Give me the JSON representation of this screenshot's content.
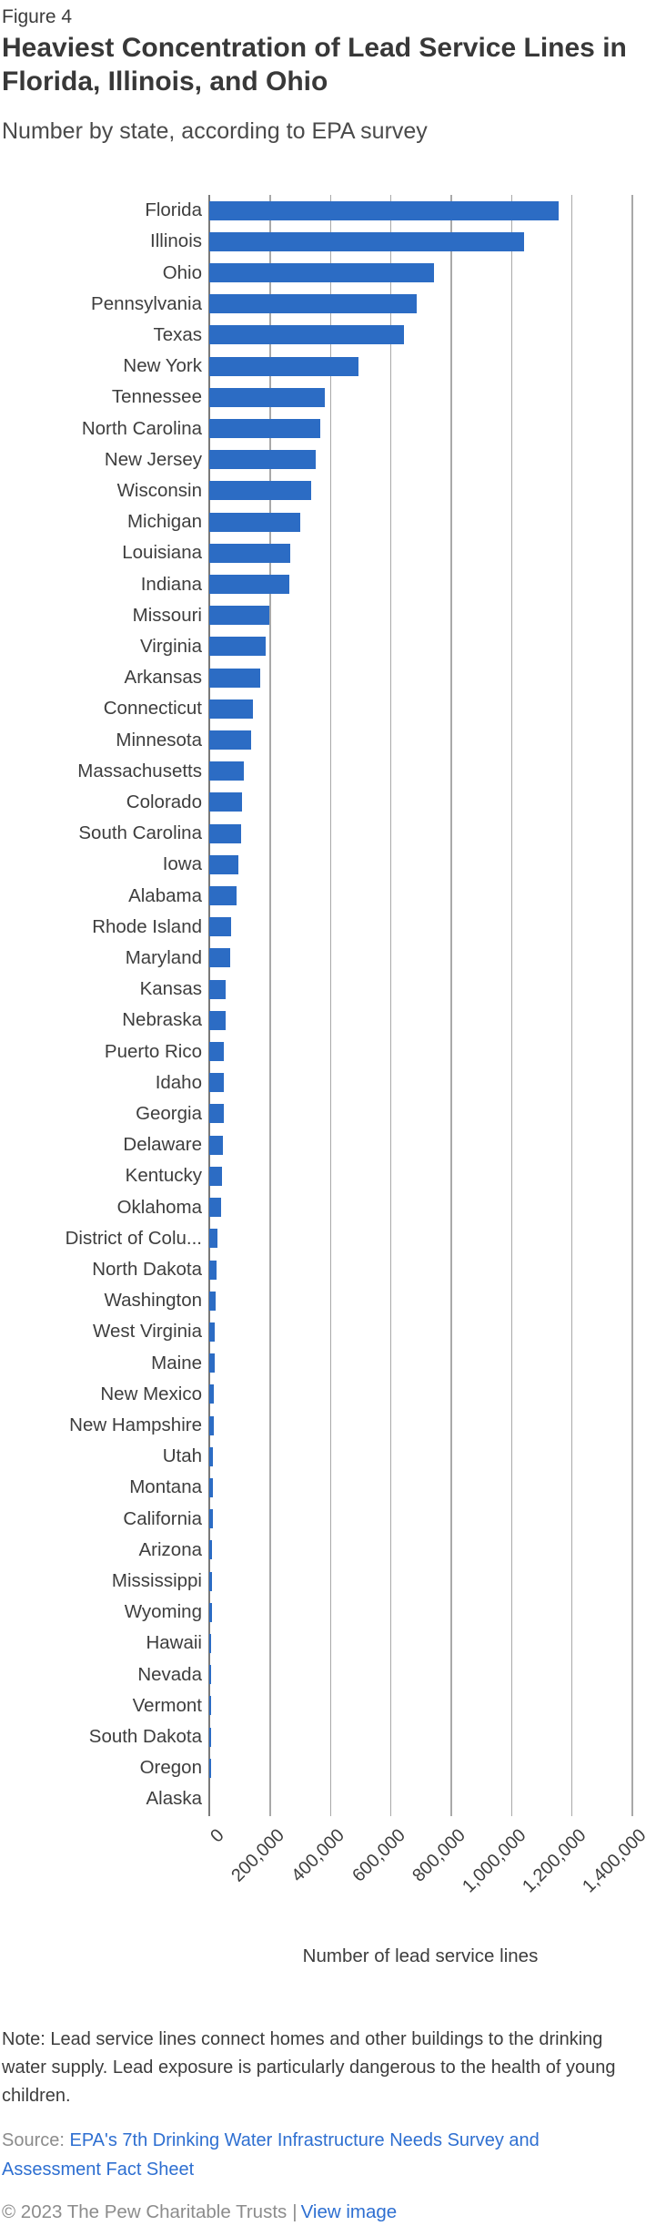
{
  "header": {
    "figure_label": "Figure 4",
    "title": "Heaviest Concentration of Lead Service Lines in Florida, Illinois, and Ohio",
    "subtitle": "Number by state, according to EPA survey"
  },
  "chart_data": {
    "type": "bar",
    "orientation": "horizontal",
    "title": "Heaviest Concentration of Lead Service Lines in Florida, Illinois, and Ohio",
    "xlabel": "Number of lead service lines",
    "xlim": [
      0,
      1400000
    ],
    "x_tick_values": [
      0,
      200000,
      400000,
      600000,
      800000,
      1000000,
      1200000,
      1400000
    ],
    "x_tick_labels": [
      "0",
      "200,000",
      "400,000",
      "600,000",
      "800,000",
      "1,000,000",
      "1,200,000",
      "1,400,000"
    ],
    "grid": "vertical-gridlines-only",
    "legend": "none",
    "bar_color": "#2c6cc4",
    "categories": [
      "Florida",
      "Illinois",
      "Ohio",
      "Pennsylvania",
      "Texas",
      "New York",
      "Tennessee",
      "North Carolina",
      "New Jersey",
      "Wisconsin",
      "Michigan",
      "Louisiana",
      "Indiana",
      "Missouri",
      "Virginia",
      "Arkansas",
      "Connecticut",
      "Minnesota",
      "Massachusetts",
      "Colorado",
      "South Carolina",
      "Iowa",
      "Alabama",
      "Rhode Island",
      "Maryland",
      "Kansas",
      "Nebraska",
      "Puerto Rico",
      "Idaho",
      "Georgia",
      "Delaware",
      "Kentucky",
      "Oklahoma",
      "District of Colu...",
      "North Dakota",
      "Washington",
      "West Virginia",
      "Maine",
      "New Mexico",
      "New Hampshire",
      "Utah",
      "Montana",
      "California",
      "Arizona",
      "Mississippi",
      "Wyoming",
      "Hawaii",
      "Nevada",
      "Vermont",
      "South Dakota",
      "Oregon",
      "Alaska"
    ],
    "values": [
      1159000,
      1043000,
      745000,
      689000,
      647000,
      494000,
      382000,
      369000,
      352000,
      339000,
      303000,
      268000,
      266000,
      199000,
      188000,
      170000,
      145000,
      139000,
      115000,
      109000,
      107000,
      97000,
      91000,
      72000,
      70000,
      55000,
      53000,
      49000,
      48000,
      47000,
      46000,
      43000,
      40000,
      28000,
      24000,
      21000,
      19000,
      17000,
      15000,
      14000,
      13000,
      12000,
      11000,
      10000,
      9000,
      8000,
      7000,
      5000,
      4000,
      3000,
      2000,
      0
    ]
  },
  "footer": {
    "note": "Note: Lead service lines connect homes and other buildings to the drinking water supply. Lead exposure is particularly dangerous to the health of young children.",
    "source_prefix": "Source: ",
    "source_link": "EPA's 7th Drinking Water Infrastructure Needs Survey and Assessment Fact Sheet",
    "copyright": "© 2023 The Pew Charitable Trusts",
    "separator": "|",
    "view_image_link": "View image"
  },
  "colors": {
    "bar": "#2c6cc4",
    "axis_line": "#7a7a7a",
    "gridline": "#a9a9a9",
    "link": "#2e6fd1",
    "title_text": "#383838",
    "body_text": "#3d3d3d",
    "muted_text": "#8c8c8c"
  }
}
